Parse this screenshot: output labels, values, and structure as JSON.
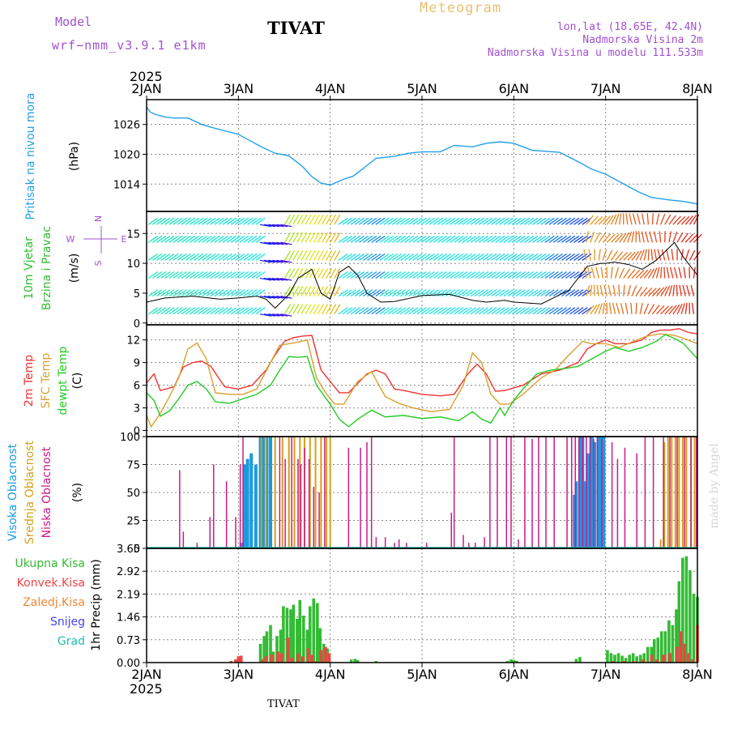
{
  "header": {
    "model_label": "Model",
    "model_name": "wrf−nmm_v3.9.1  e1km",
    "station": "TIVAT",
    "meteogram": "Meteogram",
    "lonlat": "lon,lat (18.65E, 42.4N)",
    "elev": "Nadmorska Visina 2m",
    "model_elev": "Nadmorska Visina u modelu 111.533m",
    "watermark": "made by Angel",
    "footer_station": "TIVAT"
  },
  "colors": {
    "pressure": "#22a0e8",
    "t2m": "#ee3333",
    "sfc": "#d9a030",
    "dew": "#22cc22",
    "high_cloud": "#1a9be0",
    "mid_cloud": "#d4a017",
    "low_cloud": "#cc1a88",
    "precip_total": "#33bb33",
    "precip_conv": "#ee4444",
    "precip_frozen": "#ee8833",
    "snow": "#4444ee",
    "hail": "#22bbaa",
    "header_purple": "#a050d0",
    "meteogram_gold": "#e8c070"
  },
  "chart_data": [
    {
      "type": "line",
      "name": "pressure",
      "ylabel_lines": [
        "Pritisak na nivou mora",
        "(hPa)"
      ],
      "ylim": [
        1008.5,
        1031
      ],
      "yticks": [
        1014,
        1020,
        1026
      ],
      "x_ticks": [
        "2JAN",
        "3JAN",
        "4JAN",
        "5JAN",
        "6JAN",
        "7JAN",
        "8JAN"
      ],
      "x_top_year": "2025",
      "x": [
        0,
        0.04,
        0.1,
        0.2,
        0.3,
        0.45,
        0.6,
        0.75,
        0.9,
        1.0,
        1.1,
        1.25,
        1.4,
        1.55,
        1.7,
        1.8,
        1.9,
        2.0,
        2.15,
        2.25,
        2.35,
        2.5,
        2.7,
        2.85,
        3.0,
        3.2,
        3.35,
        3.55,
        3.7,
        3.85,
        4.0,
        4.2,
        4.35,
        4.5,
        4.7,
        4.85,
        5.0,
        5.2,
        5.35,
        5.5,
        5.7,
        5.85,
        6.0
      ],
      "values": [
        1029.5,
        1028.5,
        1028,
        1027.5,
        1027.3,
        1027.3,
        1026,
        1025.2,
        1024.5,
        1024,
        1023,
        1021.5,
        1020.2,
        1019.7,
        1017.5,
        1015.5,
        1014.2,
        1013.8,
        1015,
        1015.6,
        1017,
        1019.2,
        1019.6,
        1020.2,
        1020.5,
        1020.5,
        1021.8,
        1021.5,
        1022.2,
        1022.5,
        1022.2,
        1020.8,
        1020.6,
        1020.4,
        1018.5,
        1017,
        1016,
        1014,
        1012.5,
        1011.3,
        1010.8,
        1010.5,
        1010
      ]
    },
    {
      "type": "line",
      "name": "wind",
      "ylabel_lines": [
        "10m Vjetar",
        "Brzina i Pravac",
        "(m/s)"
      ],
      "compass": [
        "N",
        "E",
        "S",
        "W"
      ],
      "ylim": [
        -0.3,
        18.7
      ],
      "yticks": [
        0,
        5,
        10,
        15
      ],
      "x_ticks": [
        "2JAN",
        "3JAN",
        "4JAN",
        "5JAN",
        "6JAN",
        "7JAN",
        "8JAN"
      ],
      "x": [
        0,
        0.2,
        0.5,
        0.8,
        1.0,
        1.2,
        1.3,
        1.4,
        1.55,
        1.65,
        1.8,
        1.9,
        2.0,
        2.1,
        2.2,
        2.3,
        2.4,
        2.55,
        2.7,
        3.0,
        3.3,
        3.55,
        3.7,
        3.9,
        4.0,
        4.3,
        4.6,
        4.8,
        4.95,
        5.0,
        5.1,
        5.25,
        5.4,
        5.55,
        5.65,
        5.75,
        5.85,
        6.0
      ],
      "values": [
        3.5,
        4.2,
        4.5,
        4.0,
        4.2,
        4.5,
        4.0,
        2.5,
        4.8,
        7.5,
        9.0,
        5.0,
        4.0,
        8.5,
        9.5,
        8.0,
        5.0,
        3.5,
        3.6,
        4.6,
        4.8,
        3.8,
        3.5,
        3.8,
        3.5,
        3.2,
        5.5,
        9.5,
        10.0,
        10.0,
        10.2,
        9.8,
        9.0,
        10.5,
        12.0,
        13.5,
        11.0,
        8.0
      ]
    },
    {
      "type": "line",
      "name": "temperature",
      "ylabel_lines": [
        "2m Temp",
        "SFC Temp",
        "dewpt Temp",
        "(C)"
      ],
      "ylim": [
        -0.8,
        14
      ],
      "yticks": [
        0,
        3,
        6,
        9,
        12
      ],
      "x_ticks": [
        "2JAN",
        "3JAN",
        "4JAN",
        "5JAN",
        "6JAN",
        "7JAN",
        "8JAN"
      ],
      "series": [
        {
          "name": "2m Temp",
          "x": [
            0,
            0.08,
            0.15,
            0.3,
            0.4,
            0.5,
            0.6,
            0.7,
            0.85,
            1.0,
            1.15,
            1.3,
            1.4,
            1.5,
            1.6,
            1.7,
            1.8,
            1.9,
            2.0,
            2.1,
            2.2,
            2.4,
            2.5,
            2.6,
            2.7,
            2.8,
            3.0,
            3.2,
            3.35,
            3.5,
            3.6,
            3.7,
            3.8,
            3.9,
            4.1,
            4.3,
            4.5,
            4.7,
            4.8,
            4.9,
            5.0,
            5.1,
            5.25,
            5.4,
            5.5,
            5.6,
            5.7,
            5.8,
            5.9,
            6.0
          ],
          "values": [
            6.3,
            7.5,
            5.3,
            5.8,
            8.4,
            9.0,
            9.2,
            8.5,
            5.8,
            5.5,
            6.0,
            8.0,
            10.0,
            11.8,
            12.3,
            12.5,
            12.6,
            8.0,
            6.5,
            5.0,
            5.0,
            7.5,
            8.0,
            7.5,
            5.5,
            5.3,
            4.8,
            4.6,
            4.8,
            7.5,
            8.8,
            7.5,
            5.2,
            5.3,
            6.0,
            7.5,
            8.0,
            9.0,
            10.8,
            11.5,
            12.0,
            11.5,
            11.5,
            12.0,
            13.0,
            13.3,
            13.3,
            13.5,
            13.0,
            12.8
          ]
        },
        {
          "name": "SFC Temp",
          "x": [
            0,
            0.05,
            0.15,
            0.25,
            0.35,
            0.45,
            0.55,
            0.65,
            0.75,
            0.9,
            1.05,
            1.2,
            1.35,
            1.45,
            1.55,
            1.65,
            1.75,
            1.85,
            1.95,
            2.05,
            2.15,
            2.3,
            2.45,
            2.6,
            2.75,
            2.9,
            3.1,
            3.3,
            3.45,
            3.55,
            3.65,
            3.75,
            3.85,
            3.95,
            4.1,
            4.3,
            4.45,
            4.6,
            4.75,
            4.85,
            5.0,
            5.15,
            5.3,
            5.45,
            5.6,
            5.75,
            5.85,
            6.0
          ],
          "values": [
            2.0,
            0.5,
            2.3,
            4.5,
            7.0,
            10.8,
            11.6,
            9.5,
            5.0,
            4.8,
            4.8,
            5.5,
            9.0,
            11.3,
            11.5,
            11.7,
            12.0,
            7.0,
            5.0,
            3.5,
            3.5,
            6.5,
            7.8,
            4.5,
            3.6,
            3.0,
            2.5,
            2.8,
            6.0,
            10.3,
            9.0,
            4.8,
            3.5,
            3.5,
            4.8,
            7.0,
            8.0,
            10.0,
            11.8,
            11.5,
            11.5,
            11.0,
            11.8,
            12.5,
            12.8,
            12.6,
            12.2,
            11.5
          ]
        },
        {
          "name": "dewpt Temp",
          "x": [
            0,
            0.08,
            0.15,
            0.25,
            0.35,
            0.45,
            0.55,
            0.65,
            0.75,
            0.9,
            1.05,
            1.2,
            1.35,
            1.45,
            1.55,
            1.65,
            1.75,
            1.85,
            2.0,
            2.1,
            2.2,
            2.3,
            2.45,
            2.6,
            2.8,
            3.0,
            3.2,
            3.4,
            3.55,
            3.65,
            3.75,
            3.85,
            3.9,
            4.0,
            4.1,
            4.25,
            4.4,
            4.55,
            4.7,
            4.85,
            5.0,
            5.1,
            5.25,
            5.4,
            5.55,
            5.65,
            5.75,
            5.85,
            6.0
          ],
          "values": [
            5.0,
            4.0,
            1.9,
            2.6,
            4.2,
            6.0,
            6.5,
            5.5,
            3.8,
            3.6,
            4.2,
            4.8,
            6.0,
            8.0,
            9.8,
            9.7,
            9.8,
            6.0,
            3.5,
            1.5,
            0.5,
            1.5,
            2.7,
            1.8,
            2.0,
            1.6,
            1.8,
            1.3,
            2.5,
            1.5,
            1.0,
            3.0,
            2.0,
            4.0,
            5.5,
            7.5,
            8.0,
            8.2,
            8.5,
            9.5,
            10.5,
            11.0,
            10.5,
            11.0,
            11.8,
            12.7,
            12.2,
            11.5,
            9.5
          ]
        }
      ]
    },
    {
      "type": "bar",
      "name": "cloud",
      "ylabel_lines": [
        "Visoka Oblacnost",
        "Srednja Oblacnost",
        "Niska Oblacnost",
        "(%)"
      ],
      "ylim": [
        0,
        100
      ],
      "yticks": [
        0,
        25,
        50,
        75,
        100
      ],
      "x_ticks": [
        "2JAN",
        "3JAN",
        "4JAN",
        "5JAN",
        "6JAN",
        "7JAN",
        "8JAN"
      ],
      "series": [
        {
          "name": "Visoka Oblacnost",
          "x": [
            1.03,
            1.07,
            1.1,
            1.14,
            1.19,
            1.24,
            1.27,
            1.31,
            1.35,
            4.66,
            4.68,
            4.72,
            4.75,
            4.78,
            4.81,
            4.85,
            4.88,
            4.92,
            4.95,
            4.98
          ],
          "values": [
            5,
            75,
            80,
            85,
            75,
            100,
            100,
            100,
            100,
            48,
            60,
            100,
            100,
            60,
            85,
            100,
            95,
            100,
            100,
            100
          ]
        },
        {
          "name": "Srednja Oblacnost",
          "x": [
            1.25,
            1.3,
            1.4,
            1.48,
            1.55,
            1.61,
            1.67,
            1.72,
            1.78,
            1.84,
            1.9,
            1.96,
            2.0,
            5.6,
            5.64,
            5.68,
            5.72,
            5.76,
            5.8,
            5.84,
            5.88,
            5.93,
            5.97
          ],
          "values": [
            100,
            100,
            100,
            100,
            100,
            100,
            100,
            100,
            100,
            100,
            100,
            100,
            100,
            8,
            95,
            100,
            100,
            100,
            100,
            100,
            100,
            100,
            100
          ]
        },
        {
          "name": "Niska Oblacnost",
          "x": [
            0.36,
            0.4,
            0.55,
            0.69,
            0.73,
            0.87,
            0.97,
            1.02,
            1.05,
            1.45,
            1.51,
            1.58,
            1.65,
            1.68,
            1.72,
            1.77,
            1.82,
            1.88,
            1.94,
            2.2,
            2.33,
            2.4,
            2.45,
            2.5,
            2.6,
            2.7,
            2.75,
            2.83,
            3.05,
            3.32,
            3.35,
            3.45,
            3.51,
            3.58,
            3.68,
            3.74,
            3.82,
            3.92,
            3.97,
            4.05,
            4.12,
            4.2,
            4.27,
            4.35,
            4.44,
            4.58,
            4.63,
            4.67,
            4.71,
            4.75,
            4.79,
            4.83,
            4.87,
            4.91,
            4.96,
            5.07,
            5.13,
            5.21,
            5.34,
            5.43,
            5.52,
            5.63,
            5.7,
            5.78,
            5.86,
            5.93,
            5.99
          ],
          "values": [
            70,
            15,
            5,
            28,
            75,
            60,
            28,
            75,
            100,
            100,
            80,
            100,
            80,
            75,
            90,
            80,
            55,
            50,
            100,
            90,
            90,
            95,
            100,
            10,
            10,
            5,
            8,
            5,
            5,
            32,
            100,
            12,
            5,
            5,
            10,
            100,
            100,
            100,
            100,
            8,
            100,
            98,
            100,
            100,
            100,
            100,
            100,
            100,
            100,
            100,
            100,
            100,
            98,
            100,
            98,
            95,
            80,
            90,
            85,
            100,
            100,
            100,
            100,
            100,
            100,
            100,
            100
          ]
        }
      ]
    },
    {
      "type": "bar",
      "name": "precip",
      "ylabel_lines": [
        "1hr Precip (mm)"
      ],
      "legend": [
        "Ukupna Kisa",
        "Konvek.Kisa",
        "Zaledj.Kisa",
        "Snijeg",
        "Grad"
      ],
      "ylim": [
        0,
        3.65
      ],
      "yticks": [
        0,
        0.73,
        1.46,
        2.19,
        2.92,
        3.65
      ],
      "x_ticks": [
        "2JAN",
        "3JAN",
        "4JAN",
        "5JAN",
        "6JAN",
        "7JAN",
        "8JAN"
      ],
      "x_bottom_year": "2025",
      "series": [
        {
          "name": "Ukupna Kisa",
          "x": [
            0.92,
            0.97,
            1.0,
            1.03,
            1.24,
            1.28,
            1.31,
            1.35,
            1.38,
            1.42,
            1.46,
            1.49,
            1.53,
            1.57,
            1.6,
            1.64,
            1.67,
            1.71,
            1.75,
            1.78,
            1.82,
            1.86,
            1.89,
            1.93,
            1.97,
            2.23,
            2.27,
            2.3,
            2.5,
            3.93,
            3.97,
            4.0,
            4.03,
            4.68,
            4.72,
            5.02,
            5.06,
            5.1,
            5.14,
            5.18,
            5.22,
            5.26,
            5.3,
            5.34,
            5.38,
            5.42,
            5.46,
            5.5,
            5.53,
            5.57,
            5.61,
            5.65,
            5.69,
            5.73,
            5.77,
            5.8,
            5.84,
            5.88,
            5.92,
            5.96,
            6.0
          ],
          "values": [
            0.05,
            0.1,
            0.2,
            0.22,
            0.6,
            0.85,
            1.0,
            1.2,
            0.35,
            0.85,
            1.05,
            1.8,
            1.75,
            1.7,
            1.85,
            1.4,
            2.0,
            1.5,
            1.05,
            1.8,
            2.05,
            1.9,
            1.1,
            0.6,
            0.45,
            0.1,
            0.12,
            0.08,
            0.05,
            0.05,
            0.1,
            0.08,
            0.05,
            0.12,
            0.18,
            0.4,
            0.3,
            0.25,
            0.3,
            0.22,
            0.15,
            0.25,
            0.3,
            0.2,
            0.25,
            0.3,
            0.5,
            0.5,
            0.75,
            0.8,
            1.0,
            1.0,
            1.35,
            1.2,
            1.7,
            2.6,
            3.35,
            3.4,
            2.95,
            2.2,
            2.1
          ]
        },
        {
          "name": "Konvek.Kisa",
          "x": [
            0.92,
            0.97,
            1.0,
            1.03,
            1.26,
            1.3,
            1.36,
            1.43,
            1.47,
            1.54,
            1.58,
            1.65,
            1.7,
            1.76,
            1.8,
            1.84,
            1.9,
            1.95,
            1.99,
            5.08,
            5.2,
            5.3,
            5.41,
            5.5,
            5.56,
            5.63,
            5.7,
            5.78,
            5.82,
            5.86,
            5.9,
            5.95,
            6.0
          ],
          "values": [
            0.05,
            0.1,
            0.2,
            0.22,
            0.1,
            0.2,
            0.25,
            0.35,
            0.3,
            0.8,
            0.15,
            0.3,
            0.2,
            0.45,
            0.25,
            0.05,
            0.4,
            0.5,
            0.3,
            0.05,
            0.05,
            0.05,
            0.1,
            0.25,
            0.1,
            0.25,
            0.3,
            0.5,
            1.0,
            0.6,
            0.3,
            0.1,
            1.2
          ]
        }
      ]
    }
  ]
}
